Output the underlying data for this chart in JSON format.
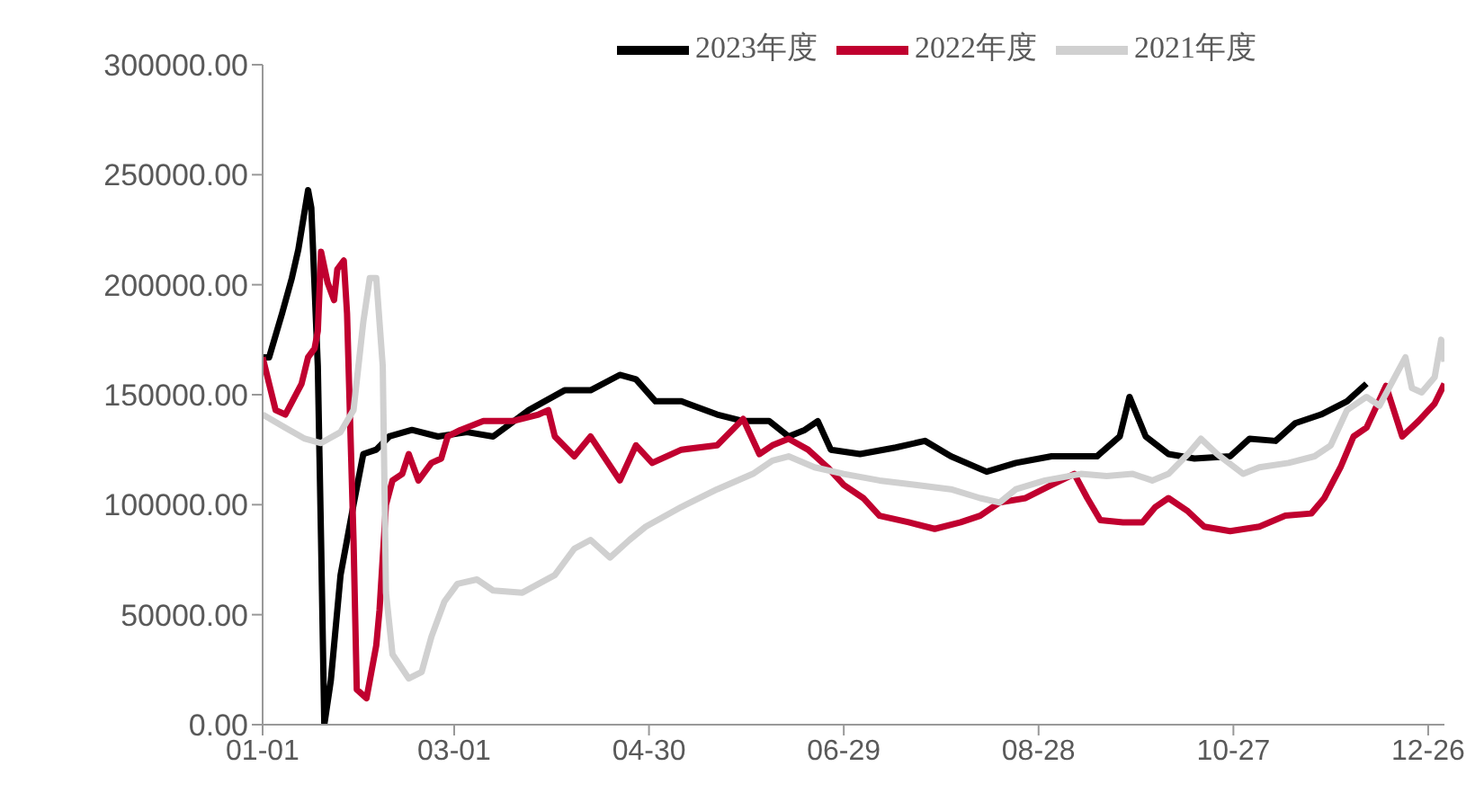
{
  "chart_data": {
    "type": "line",
    "legend": "top",
    "grid": false,
    "marker": "none",
    "line_style": "solid",
    "xlim": [
      "--01-01",
      "--12-31"
    ],
    "xticks": [
      {
        "value": "--01-01",
        "label": "01-01"
      },
      {
        "value": "--03-01",
        "label": "03-01"
      },
      {
        "value": "--04-30",
        "label": "04-30"
      },
      {
        "value": "--06-29",
        "label": "06-29"
      },
      {
        "value": "--08-28",
        "label": "08-28"
      },
      {
        "value": "--10-27",
        "label": "10-27"
      },
      {
        "value": "--12-26",
        "label": "12-26"
      }
    ],
    "ylim": [
      0,
      300000
    ],
    "yticks": [
      {
        "value": 0,
        "label": "0.00"
      },
      {
        "value": 50000,
        "label": "50000.00"
      },
      {
        "value": 100000,
        "label": "100000.00"
      },
      {
        "value": 150000,
        "label": "150000.00"
      },
      {
        "value": 200000,
        "label": "200000.00"
      },
      {
        "value": 250000,
        "label": "250000.00"
      },
      {
        "value": 300000,
        "label": "300000.00"
      }
    ],
    "series": [
      {
        "name": "2023年度",
        "color": "#000000",
        "x": [
          "--01-01",
          "--01-03",
          "--01-07",
          "--01-10",
          "--01-12",
          "--01-15",
          "--01-16",
          "--01-18",
          "--01-19",
          "--01-20",
          "--01-22",
          "--01-25",
          "--01-29",
          "--02-01",
          "--02-05",
          "--02-09",
          "--02-16",
          "--02-24",
          "--03-05",
          "--03-13",
          "--03-24",
          "--04-04",
          "--04-12",
          "--04-21",
          "--04-26",
          "--05-02",
          "--05-10",
          "--05-21",
          "--05-29",
          "--06-06",
          "--06-12",
          "--06-17",
          "--06-21",
          "--06-25",
          "--07-04",
          "--07-15",
          "--07-24",
          "--08-01",
          "--08-12",
          "--08-21",
          "--09-01",
          "--09-15",
          "--09-22",
          "--09-25",
          "--09-30",
          "--10-07",
          "--10-15",
          "--10-26",
          "--11-01",
          "--11-09",
          "--11-15",
          "--11-23",
          "--12-01",
          "--12-07"
        ],
        "values": [
          167000,
          167000,
          187000,
          203000,
          216000,
          243000,
          235000,
          163000,
          84000,
          0,
          20000,
          68000,
          100000,
          123000,
          125000,
          131000,
          134000,
          131000,
          133000,
          131000,
          143000,
          152000,
          152000,
          159000,
          157000,
          147000,
          147000,
          141000,
          138000,
          138000,
          131000,
          134000,
          138000,
          125000,
          123000,
          126000,
          129000,
          122000,
          115000,
          119000,
          122000,
          122000,
          131000,
          149000,
          131000,
          123000,
          121000,
          122000,
          130000,
          129000,
          137000,
          141000,
          147000,
          155000
        ]
      },
      {
        "name": "2022年度",
        "color": "#c0002f",
        "x": [
          "--01-01",
          "--01-03",
          "--01-05",
          "--01-08",
          "--01-13",
          "--01-15",
          "--01-17",
          "--01-18",
          "--01-19",
          "--01-21",
          "--01-23",
          "--01-24",
          "--01-26",
          "--01-27",
          "--01-29",
          "--01-30",
          "--02-02",
          "--02-05",
          "--02-06",
          "--02-08",
          "--02-10",
          "--02-13",
          "--02-15",
          "--02-18",
          "--02-22",
          "--02-25",
          "--02-27",
          "--03-03",
          "--03-10",
          "--03-19",
          "--03-27",
          "--03-30",
          "--04-01",
          "--04-07",
          "--04-12",
          "--04-21",
          "--04-26",
          "--05-01",
          "--05-10",
          "--05-21",
          "--05-29",
          "--06-03",
          "--06-07",
          "--06-12",
          "--06-18",
          "--06-24",
          "--06-29",
          "--07-05",
          "--07-10",
          "--07-19",
          "--07-27",
          "--08-04",
          "--08-10",
          "--08-16",
          "--08-24",
          "--09-01",
          "--09-08",
          "--09-12",
          "--09-16",
          "--09-23",
          "--09-29",
          "--10-03",
          "--10-07",
          "--10-13",
          "--10-18",
          "--10-26",
          "--11-04",
          "--11-12",
          "--11-20",
          "--11-24",
          "--11-29",
          "--12-03",
          "--12-07",
          "--12-13",
          "--12-18",
          "--12-23",
          "--12-28",
          "--12-31"
        ],
        "values": [
          167000,
          155000,
          143000,
          141000,
          155000,
          167000,
          171000,
          179000,
          215000,
          201000,
          193000,
          207000,
          211000,
          187000,
          84000,
          16000,
          12000,
          36000,
          52000,
          100000,
          111000,
          114000,
          123000,
          111000,
          119000,
          121000,
          131000,
          134000,
          138000,
          138000,
          141000,
          143000,
          131000,
          122000,
          131000,
          111000,
          127000,
          119000,
          125000,
          127000,
          139000,
          123000,
          127000,
          130000,
          125000,
          117000,
          109000,
          103000,
          95000,
          92000,
          89000,
          92000,
          95000,
          101000,
          103000,
          109000,
          114000,
          103000,
          93000,
          92000,
          92000,
          99000,
          103000,
          97000,
          90000,
          88000,
          90000,
          95000,
          96000,
          103000,
          117000,
          131000,
          135000,
          154000,
          131000,
          138000,
          146000,
          155000
        ]
      },
      {
        "name": "2021年度",
        "color": "#d0d0d0",
        "x": [
          "--01-01",
          "--01-08",
          "--01-14",
          "--01-19",
          "--01-25",
          "--01-29",
          "--02-01",
          "--02-03",
          "--02-05",
          "--02-07",
          "--02-08",
          "--02-10",
          "--02-15",
          "--02-19",
          "--02-22",
          "--02-26",
          "--03-02",
          "--03-08",
          "--03-13",
          "--03-22",
          "--03-27",
          "--04-01",
          "--04-07",
          "--04-12",
          "--04-18",
          "--04-24",
          "--04-29",
          "--05-10",
          "--05-21",
          "--06-01",
          "--06-07",
          "--06-12",
          "--06-20",
          "--06-29",
          "--07-10",
          "--07-21",
          "--08-01",
          "--08-10",
          "--08-16",
          "--08-21",
          "--08-30",
          "--09-10",
          "--09-18",
          "--09-26",
          "--10-02",
          "--10-07",
          "--10-13",
          "--10-17",
          "--10-22",
          "--10-30",
          "--11-04",
          "--11-13",
          "--11-21",
          "--11-26",
          "--12-01",
          "--12-07",
          "--12-11",
          "--12-19",
          "--12-21",
          "--12-24",
          "--12-28",
          "--12-30",
          "--12-31"
        ],
        "values": [
          141000,
          135000,
          130000,
          128000,
          133000,
          143000,
          183000,
          203000,
          203000,
          163000,
          60000,
          32000,
          21000,
          24000,
          40000,
          56000,
          64000,
          66000,
          61000,
          60000,
          64000,
          68000,
          80000,
          84000,
          76000,
          84000,
          90000,
          99000,
          107000,
          114000,
          120000,
          122000,
          117000,
          114000,
          111000,
          109000,
          107000,
          103000,
          101000,
          107000,
          111000,
          114000,
          113000,
          114000,
          111000,
          114000,
          123000,
          130000,
          123000,
          114000,
          117000,
          119000,
          122000,
          127000,
          143000,
          149000,
          145000,
          167000,
          153000,
          151000,
          158000,
          175000,
          165000
        ]
      }
    ]
  }
}
